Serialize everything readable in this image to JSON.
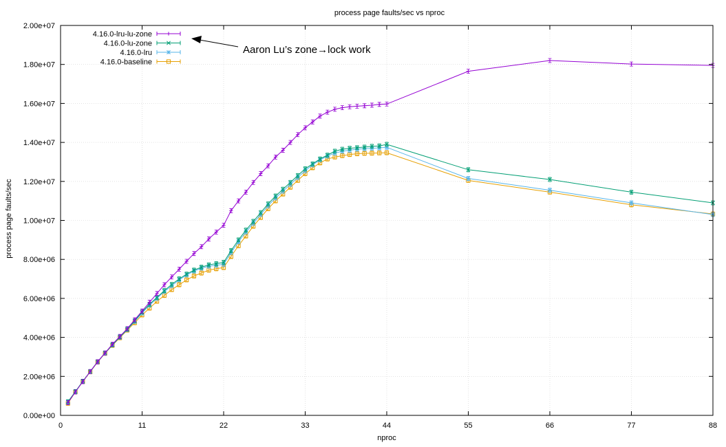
{
  "colors": {
    "lru_lu_zone": "#9400d3",
    "lu_zone": "#009e73",
    "lru": "#56b4e9",
    "baseline": "#e69f00",
    "grid": "#d0d0d0"
  },
  "chart_data": {
    "type": "line",
    "title": "process page faults/sec vs nproc",
    "xlabel": "nproc",
    "ylabel": "process page faults/sec",
    "xlim": [
      0,
      88
    ],
    "ylim": [
      0,
      20000000
    ],
    "xticks": [
      0,
      11,
      22,
      33,
      44,
      55,
      66,
      77,
      88
    ],
    "xtick_labels": [
      "0",
      "11",
      "22",
      "33",
      "44",
      "55",
      "66",
      "77",
      "88"
    ],
    "yticks": [
      0,
      2000000,
      4000000,
      6000000,
      8000000,
      10000000,
      12000000,
      14000000,
      16000000,
      18000000,
      20000000
    ],
    "ytick_labels": [
      "0.00e+00",
      "2.00e+06",
      "4.00e+06",
      "6.00e+06",
      "8.00e+06",
      "1.00e+07",
      "1.20e+07",
      "1.40e+07",
      "1.60e+07",
      "1.80e+07",
      "2.00e+07"
    ],
    "grid": true,
    "legend_position": "top-left",
    "annotation": {
      "text": "Aaron Lu’s zone→lock work",
      "points_to": "4.16.0-lru-lu-zone"
    },
    "x": [
      1,
      2,
      3,
      4,
      5,
      6,
      7,
      8,
      9,
      10,
      11,
      12,
      13,
      14,
      15,
      16,
      17,
      18,
      19,
      20,
      21,
      22,
      23,
      24,
      25,
      26,
      27,
      28,
      29,
      30,
      31,
      32,
      33,
      34,
      35,
      36,
      37,
      38,
      39,
      40,
      41,
      42,
      43,
      44,
      55,
      66,
      77,
      88
    ],
    "series": [
      {
        "name": "4.16.0-lru-lu-zone",
        "color_key": "lru_lu_zone",
        "marker": "plus",
        "values": [
          650000,
          1200000,
          1730000,
          2250000,
          2750000,
          3200000,
          3650000,
          4050000,
          4450000,
          4900000,
          5350000,
          5800000,
          6250000,
          6700000,
          7100000,
          7500000,
          7900000,
          8300000,
          8650000,
          9050000,
          9400000,
          9750000,
          10500000,
          11000000,
          11450000,
          11950000,
          12400000,
          12800000,
          13250000,
          13600000,
          14000000,
          14400000,
          14750000,
          15050000,
          15350000,
          15550000,
          15700000,
          15780000,
          15830000,
          15860000,
          15880000,
          15910000,
          15950000,
          15970000,
          17650000,
          18200000,
          18020000,
          17950000
        ]
      },
      {
        "name": "4.16.0-lu-zone",
        "color_key": "lu_zone",
        "marker": "x",
        "values": [
          700000,
          1220000,
          1750000,
          2250000,
          2750000,
          3200000,
          3620000,
          4020000,
          4420000,
          4850000,
          5300000,
          5700000,
          6050000,
          6400000,
          6720000,
          7000000,
          7250000,
          7450000,
          7600000,
          7720000,
          7780000,
          7850000,
          8450000,
          9000000,
          9500000,
          9950000,
          10400000,
          10850000,
          11250000,
          11600000,
          11950000,
          12300000,
          12650000,
          12900000,
          13150000,
          13350000,
          13550000,
          13650000,
          13700000,
          13730000,
          13760000,
          13800000,
          13820000,
          13900000,
          12600000,
          12100000,
          11450000,
          10900000
        ]
      },
      {
        "name": "4.16.0-lru",
        "color_key": "lru",
        "marker": "star",
        "values": [
          680000,
          1210000,
          1740000,
          2240000,
          2740000,
          3190000,
          3610000,
          4010000,
          4400000,
          4820000,
          5250000,
          5650000,
          6000000,
          6350000,
          6650000,
          6950000,
          7200000,
          7400000,
          7550000,
          7650000,
          7700000,
          7750000,
          8350000,
          8900000,
          9400000,
          9850000,
          10300000,
          10750000,
          11150000,
          11500000,
          11850000,
          12200000,
          12550000,
          12850000,
          13100000,
          13300000,
          13450000,
          13550000,
          13600000,
          13650000,
          13680000,
          13700000,
          13720000,
          13750000,
          12150000,
          11550000,
          10900000,
          10300000
        ]
      },
      {
        "name": "4.16.0-baseline",
        "color_key": "baseline",
        "marker": "square",
        "values": [
          620000,
          1200000,
          1730000,
          2230000,
          2730000,
          3180000,
          3590000,
          3980000,
          4370000,
          4750000,
          5150000,
          5500000,
          5850000,
          6150000,
          6450000,
          6700000,
          6950000,
          7150000,
          7300000,
          7450000,
          7520000,
          7580000,
          8150000,
          8700000,
          9200000,
          9700000,
          10150000,
          10600000,
          11000000,
          11350000,
          11700000,
          12050000,
          12400000,
          12700000,
          12950000,
          13150000,
          13250000,
          13320000,
          13380000,
          13420000,
          13440000,
          13450000,
          13460000,
          13470000,
          12050000,
          11450000,
          10800000,
          10330000
        ]
      }
    ]
  }
}
